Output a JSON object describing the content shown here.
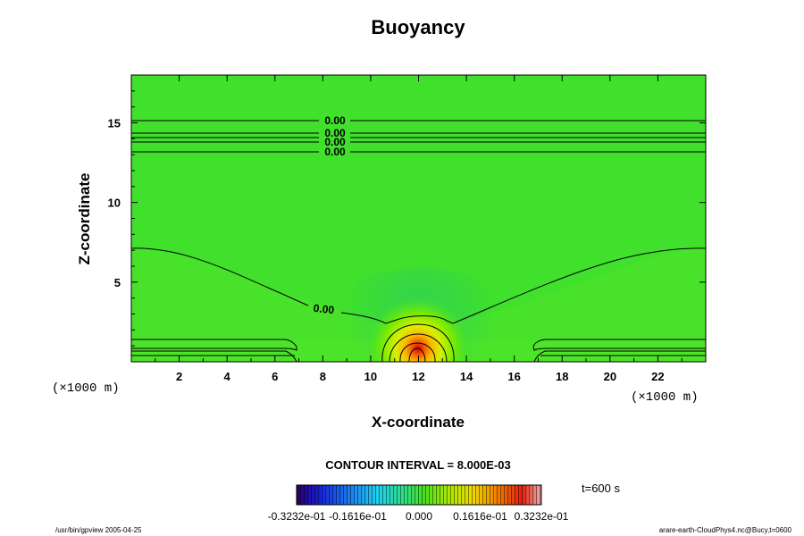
{
  "chart_data": {
    "type": "heatmap",
    "title": "Buoyancy",
    "xlabel": "X-coordinate",
    "ylabel": "Z-coordinate",
    "x_unit": "(×1000 m)",
    "z_unit": "(×1000 m)",
    "xlim": [
      0,
      24
    ],
    "ylim": [
      0,
      18
    ],
    "x_ticks": [
      2,
      4,
      6,
      8,
      10,
      12,
      14,
      16,
      18,
      20,
      22
    ],
    "y_ticks": [
      5,
      10,
      15
    ],
    "contour_interval_text": "CONTOUR INTERVAL = 8.000E-03",
    "contour_label": "0.00",
    "colorbar": {
      "min": -0.03232,
      "max": 0.03232,
      "tick_labels": [
        "-0.3232e-01",
        "-0.1616e-01",
        "0.000",
        "0.1616e-01",
        "0.3232e-01"
      ]
    },
    "warm_bubble": {
      "x_center": 12,
      "z_center": 0.8,
      "peak": 0.032
    },
    "time_label": "t=600 s",
    "legend": "none",
    "grid": false
  },
  "footer": {
    "left": "/usr/bin/gpview 2005-04-25",
    "right": "arare-earth-CloudPhys4.nc@Bucy,t=0600"
  }
}
